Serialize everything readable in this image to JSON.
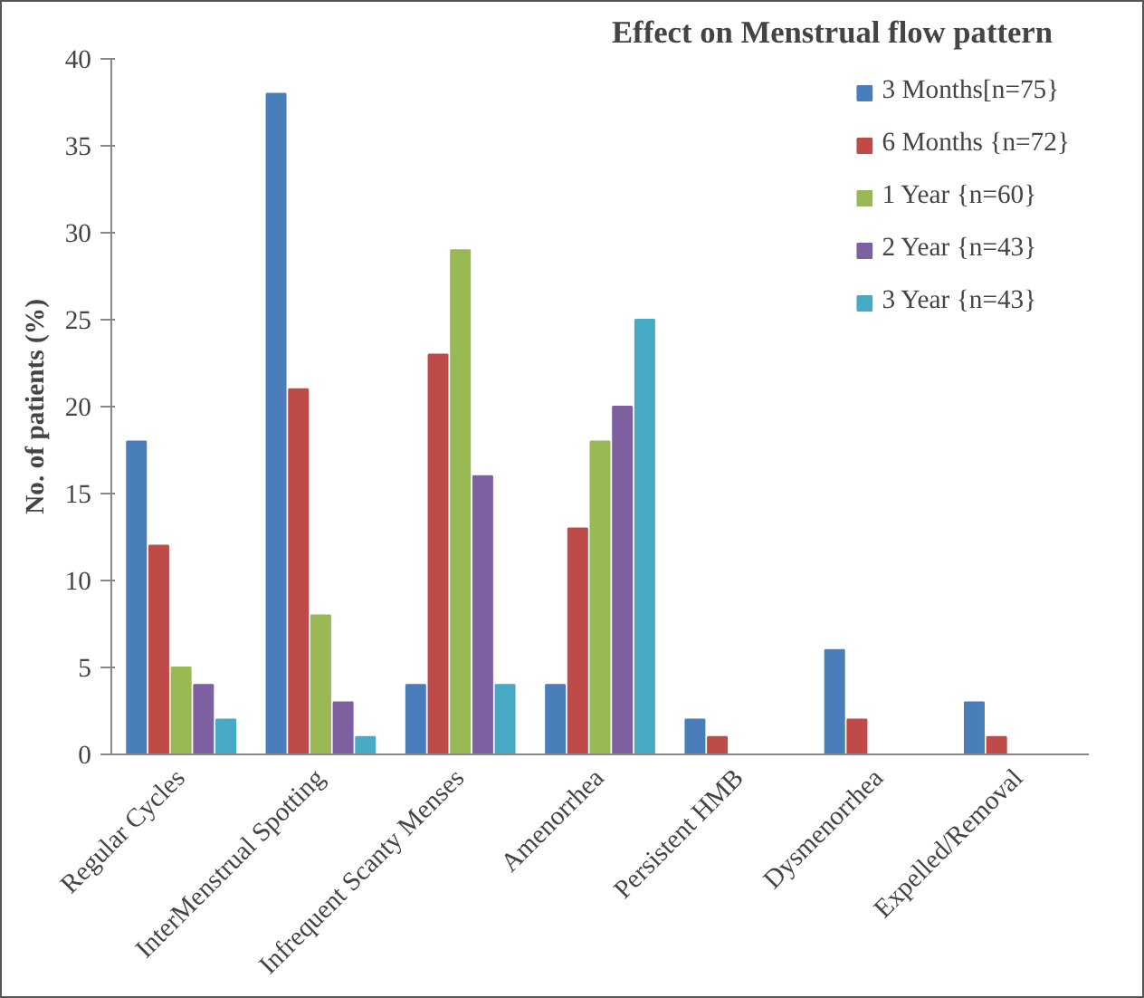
{
  "chart_data": {
    "type": "bar",
    "title": "Effect on Menstrual flow pattern",
    "ylabel": "No. of patients (%)",
    "categories": [
      "Regular Cycles",
      "InterMenstrual Spotting",
      "Infrequent Scanty Menses",
      "Amenorrhea",
      "Persistent HMB",
      "Dysmenorrhea",
      "Expelled/Removal"
    ],
    "series": [
      {
        "name": "3 Months[n=75}",
        "color": "#4a7ebb",
        "values": [
          18,
          38,
          4,
          4,
          2,
          6,
          3
        ]
      },
      {
        "name": "6 Months {n=72}",
        "color": "#be4b48",
        "values": [
          12,
          21,
          23,
          13,
          1,
          2,
          1
        ]
      },
      {
        "name": "1 Year {n=60}",
        "color": "#98b954",
        "values": [
          5,
          8,
          29,
          18,
          0,
          0,
          0
        ]
      },
      {
        "name": "2 Year {n=43}",
        "color": "#7d60a0",
        "values": [
          4,
          3,
          16,
          20,
          0,
          0,
          0
        ]
      },
      {
        "name": "3 Year {n=43}",
        "color": "#46aac5",
        "values": [
          2,
          1,
          4,
          25,
          0,
          0,
          0
        ]
      }
    ],
    "ylim": [
      0,
      40
    ],
    "yticks": [
      0,
      5,
      10,
      15,
      20,
      25,
      30,
      35,
      40
    ],
    "grid": false,
    "legend": "top right"
  }
}
